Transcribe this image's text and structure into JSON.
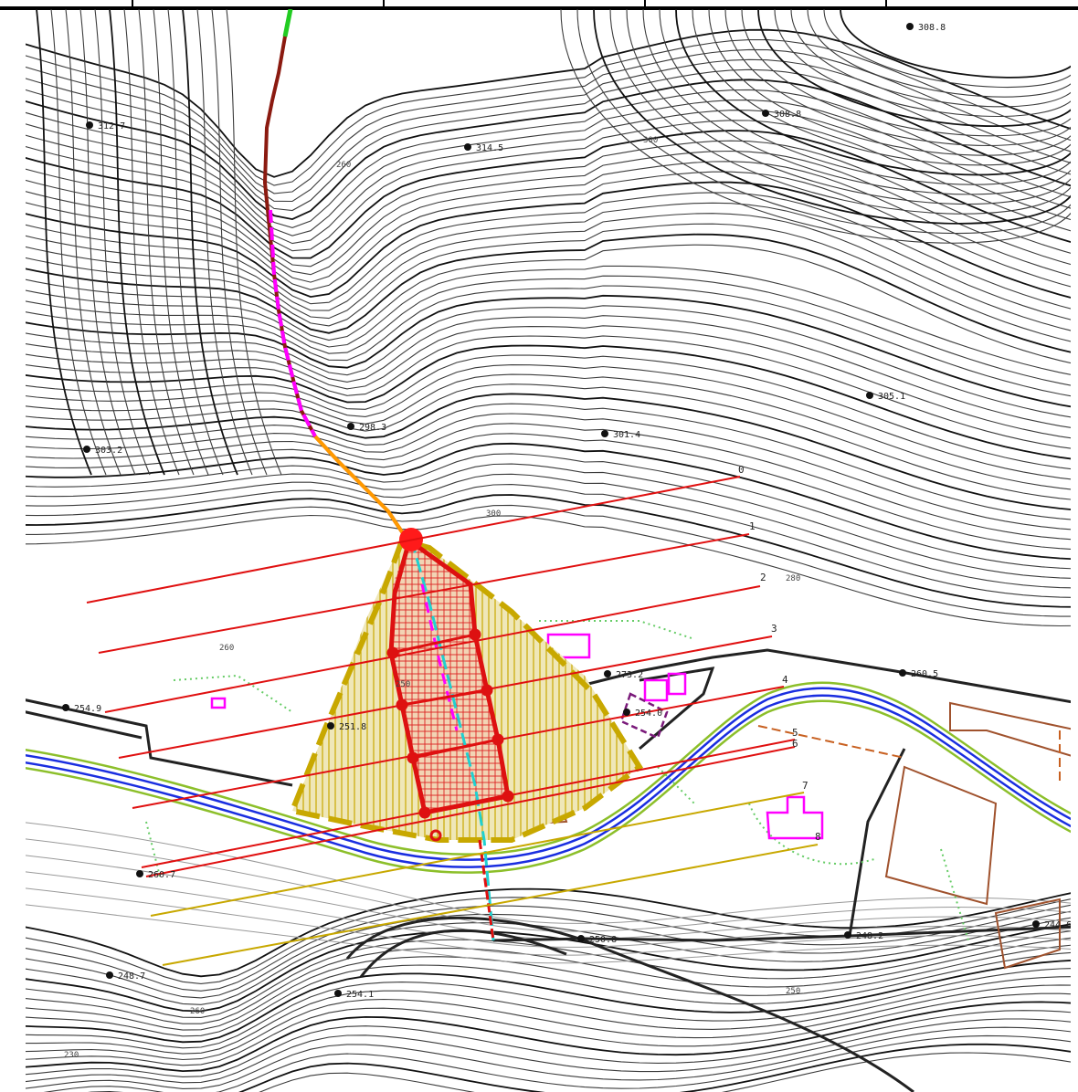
{
  "map": {
    "colors": {
      "contour": "#3c3c3c",
      "contour_index": "#111111",
      "road": "#222222",
      "river": "#1a2ee0",
      "river_bank": "#8cbf2a",
      "profile_red": "#e01010",
      "profile_yellow": "#c8a800",
      "fan_boundary": "#c8a800",
      "fan_fill": "#efe7b8",
      "gully_main": "#8b1a10",
      "gully_magenta": "#ff00ff",
      "gully_orange": "#ff9900",
      "gully_cyan": "#20e0e0",
      "gully_green": "#22cc22",
      "building": "#ff00ff",
      "field": "#a0522d",
      "vegetation": "#66cc66",
      "channel_grid": "#dd1111"
    },
    "elevation_points": [
      {
        "label": "312.7"
      },
      {
        "label": "314.5"
      },
      {
        "label": "308.8"
      },
      {
        "label": "308.8"
      },
      {
        "label": "303.2"
      },
      {
        "label": "298.3"
      },
      {
        "label": "301.4"
      },
      {
        "label": "305.1"
      },
      {
        "label": "254.0"
      },
      {
        "label": "251.8"
      },
      {
        "label": "254.9"
      },
      {
        "label": "260.5"
      },
      {
        "label": "260.7"
      },
      {
        "label": "250.8"
      },
      {
        "label": "248.2"
      },
      {
        "label": "244.6"
      },
      {
        "label": "248.7"
      },
      {
        "label": "254.1"
      },
      {
        "label": "273.2"
      }
    ],
    "contour_labels": [
      {
        "label": "300"
      },
      {
        "label": "280"
      },
      {
        "label": "260"
      },
      {
        "label": "250"
      },
      {
        "label": "300"
      },
      {
        "label": "260"
      },
      {
        "label": "250"
      },
      {
        "label": "230"
      },
      {
        "label": "260"
      }
    ],
    "profile_lines": [
      {
        "label": "0"
      },
      {
        "label": "1"
      },
      {
        "label": "2"
      },
      {
        "label": "3"
      },
      {
        "label": "4"
      },
      {
        "label": "5"
      },
      {
        "label": "6"
      },
      {
        "label": "7"
      },
      {
        "label": "8"
      }
    ]
  }
}
